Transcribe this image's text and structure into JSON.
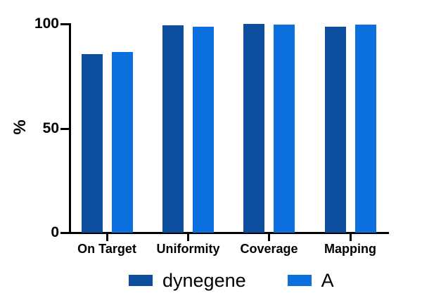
{
  "figure": {
    "background_color": "#ffffff",
    "axis_color": "#000000",
    "y_axis_title": "%"
  },
  "chart_data": {
    "type": "bar",
    "title": "",
    "xlabel": "",
    "ylabel": "%",
    "categories": [
      "On Target",
      "Uniformity",
      "Coverage",
      "Mapping"
    ],
    "series": [
      {
        "name": "dynegene",
        "color": "#0d4f9e",
        "values": [
          85.4,
          99.3,
          99.9,
          98.6
        ]
      },
      {
        "name": "A",
        "color": "#0b6fdd",
        "values": [
          86.4,
          98.7,
          99.6,
          99.8
        ]
      }
    ],
    "ylim": [
      0,
      100
    ],
    "yticks": [
      0,
      50,
      100
    ],
    "grid": false,
    "legend_position": "bottom"
  }
}
